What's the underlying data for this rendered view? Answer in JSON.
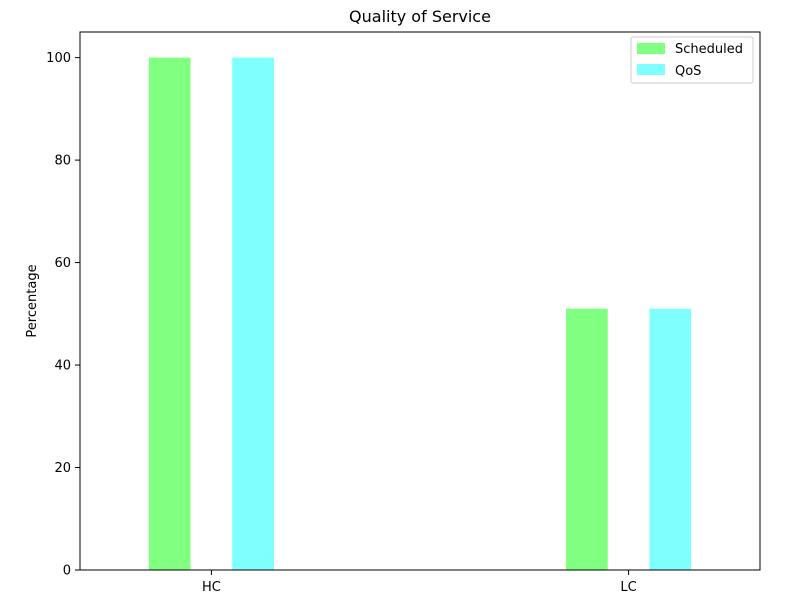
{
  "chart_data": {
    "type": "bar",
    "title": "Quality of Service",
    "xlabel": "",
    "ylabel": "Percentage",
    "categories": [
      "HC",
      "LC"
    ],
    "series": [
      {
        "name": "Scheduled",
        "values": [
          100,
          51
        ],
        "color": "#80ff80"
      },
      {
        "name": "QoS",
        "values": [
          100,
          51
        ],
        "color": "#80ffff"
      }
    ],
    "ylim": [
      0,
      105
    ],
    "yticks": [
      0,
      20,
      40,
      60,
      80,
      100
    ],
    "grid": false,
    "legend": "top-right"
  }
}
